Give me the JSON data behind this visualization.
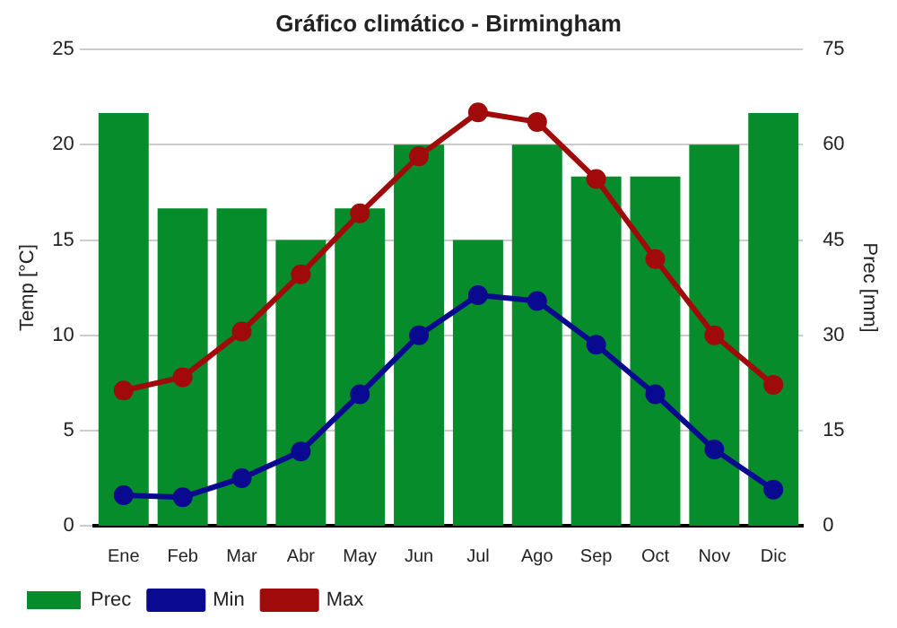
{
  "chart_data": {
    "type": "bar",
    "title": "Gráfico climático - Birmingham",
    "ylabel": "Temp [°C]",
    "y2label": "Prec [mm]",
    "categories": [
      "Ene",
      "Feb",
      "Mar",
      "Abr",
      "May",
      "Jun",
      "Jul",
      "Ago",
      "Sep",
      "Oct",
      "Nov",
      "Dic"
    ],
    "series": [
      {
        "name": "Prec",
        "axis": "y2",
        "color": "#078c2b",
        "values": [
          65,
          50,
          50,
          45,
          50,
          60,
          45,
          60,
          55,
          55,
          60,
          65
        ]
      },
      {
        "name": "Min",
        "type": "line",
        "axis": "y",
        "color": "#0a0a90",
        "values": [
          1.6,
          1.5,
          2.5,
          3.9,
          6.9,
          10,
          12.1,
          11.8,
          9.5,
          6.9,
          4,
          1.9
        ]
      },
      {
        "name": "Max",
        "type": "line",
        "axis": "y",
        "color": "#a00a0a",
        "values": [
          7.1,
          7.8,
          10.2,
          13.2,
          16.4,
          19.4,
          21.7,
          21.2,
          18.2,
          14,
          10,
          7.4
        ]
      }
    ],
    "ylim": [
      0,
      25
    ],
    "yticks": [
      0,
      5,
      10,
      15,
      20,
      25
    ],
    "y2lim": [
      0,
      75
    ],
    "y2ticks": [
      0,
      15,
      30,
      45,
      60,
      75
    ],
    "grid": "y",
    "legend": "bottom left",
    "marker": "circle",
    "line_style": "solid"
  }
}
